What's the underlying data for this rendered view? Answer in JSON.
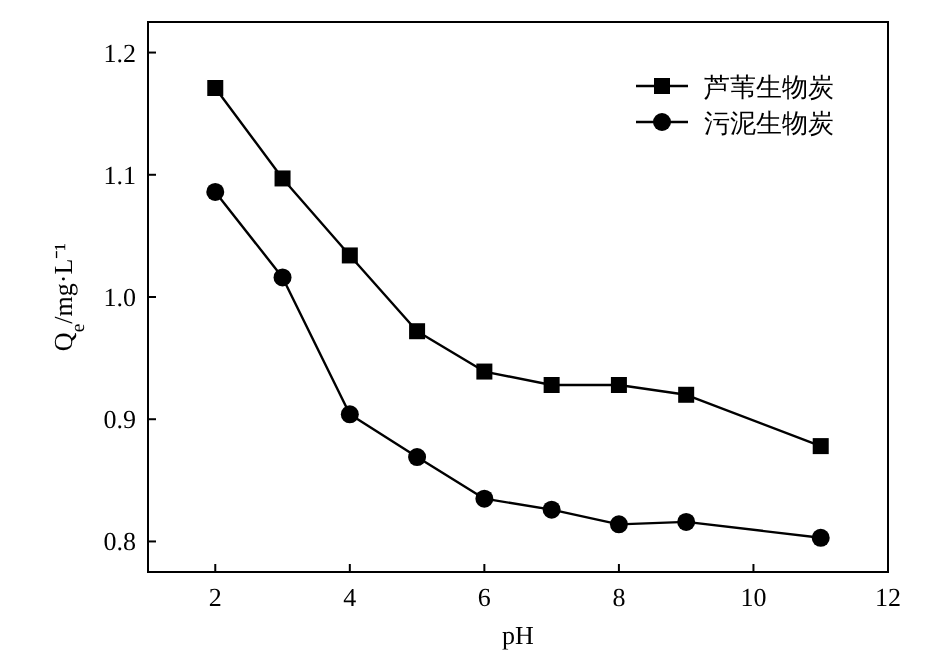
{
  "chart_data": {
    "type": "line",
    "xlabel": "pH",
    "ylabel": "Q$_{e}$/mg·L⁻¹",
    "x": [
      2,
      3,
      4,
      5,
      6,
      7,
      8,
      9,
      11
    ],
    "series": [
      {
        "name": "芦苇生物炭",
        "color": "#000000",
        "marker": "square",
        "values": [
          1.171,
          1.097,
          1.034,
          0.972,
          0.939,
          0.928,
          0.928,
          0.92,
          0.878
        ]
      },
      {
        "name": "污泥生物炭",
        "color": "#000000",
        "marker": "circle",
        "values": [
          1.086,
          1.016,
          0.904,
          0.869,
          0.835,
          0.826,
          0.814,
          0.816,
          0.803
        ]
      }
    ],
    "xlim": [
      1,
      12
    ],
    "xticks": [
      2,
      4,
      6,
      8,
      10,
      12
    ],
    "ylim": [
      0.775,
      1.225
    ],
    "yticks": [
      {
        "value": 0.8,
        "label": "0.8"
      },
      {
        "value": 0.9,
        "label": "0.9"
      },
      {
        "value": 1.0,
        "label": "1.0"
      },
      {
        "value": 1.1,
        "label": "1.1"
      },
      {
        "value": 1.2,
        "label": "1.2"
      }
    ],
    "legend": "top right",
    "grid": false,
    "line_style": "solid"
  }
}
